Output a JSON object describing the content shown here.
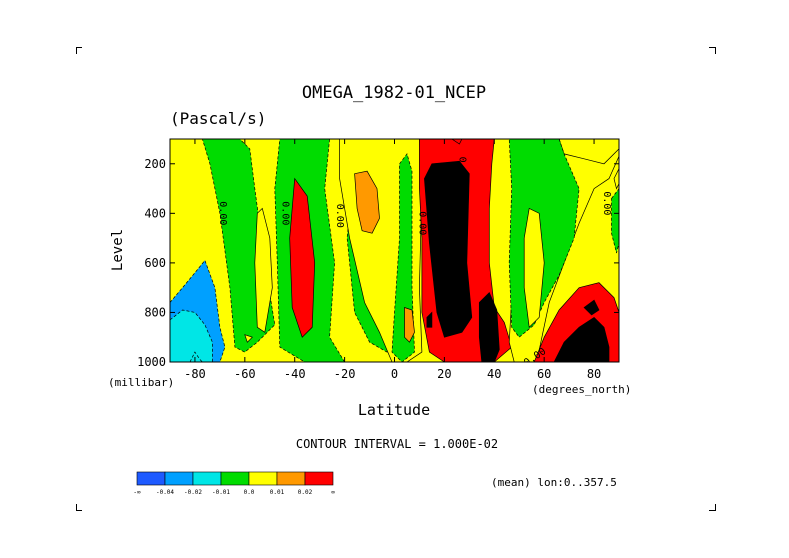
{
  "chart_data": {
    "type": "heatmap",
    "title": "OMEGA_1982-01_NCEP",
    "subtitle": "(Pascal/s)",
    "ylabel": "Level",
    "yunits": "(millibar)",
    "xlabel": "Latitude",
    "xunits": "(degrees_north)",
    "xlim": [
      -90,
      90
    ],
    "ylim": [
      1000,
      100
    ],
    "x_ticks": [
      -80,
      -60,
      -40,
      -20,
      0,
      20,
      40,
      60,
      80
    ],
    "y_ticks": [
      200,
      400,
      600,
      800,
      1000
    ],
    "contour_interval_text": "CONTOUR INTERVAL = 1.000E-02",
    "mean_note": "(mean) lon:0..357.5",
    "contour_labels": [
      "0.00",
      "0.00",
      "0.00",
      "0.00",
      "0.00",
      "0.00",
      "0.00"
    ],
    "levels": [
      {
        "label": "-∞",
        "color": "#1e5aff"
      },
      {
        "label": "-0.04",
        "color": "#00a0ff"
      },
      {
        "label": "-0.02",
        "color": "#00e6e6"
      },
      {
        "label": "-0.01",
        "color": "#00dc00"
      },
      {
        "label": "0.0",
        "color": "#ffff00"
      },
      {
        "label": "0.01",
        "color": "#ff9900"
      },
      {
        "label": "0.02",
        "color": "#ff0000"
      },
      {
        "label": "∞",
        "color": ""
      }
    ],
    "regions": [
      {
        "cat": 1,
        "poly": [
          [
            -90,
            760
          ],
          [
            -85,
            700
          ],
          [
            -80,
            640
          ],
          [
            -76,
            590
          ],
          [
            -72,
            700
          ],
          [
            -70,
            860
          ],
          [
            -68,
            940
          ],
          [
            -70,
            1000
          ],
          [
            -90,
            1000
          ]
        ]
      },
      {
        "cat": 2,
        "poly": [
          [
            -90,
            830
          ],
          [
            -85,
            790
          ],
          [
            -80,
            800
          ],
          [
            -76,
            850
          ],
          [
            -73,
            920
          ],
          [
            -73,
            1000
          ],
          [
            -90,
            1000
          ]
        ]
      },
      {
        "cat": 2,
        "poly": [
          [
            -82,
            1000
          ],
          [
            -80,
            960
          ],
          [
            -78,
            990
          ],
          [
            -77,
            1000
          ]
        ]
      },
      {
        "cat": 3,
        "poly": [
          [
            -77,
            100
          ],
          [
            -62,
            100
          ],
          [
            -58,
            140
          ],
          [
            -56,
            300
          ],
          [
            -52,
            600
          ],
          [
            -48,
            850
          ],
          [
            -55,
            920
          ],
          [
            -60,
            960
          ],
          [
            -64,
            940
          ],
          [
            -66,
            700
          ],
          [
            -70,
            400
          ],
          [
            -74,
            200
          ]
        ]
      },
      {
        "cat": 4,
        "poly": [
          [
            -53,
            380
          ],
          [
            -50,
            500
          ],
          [
            -49,
            700
          ],
          [
            -52,
            880
          ],
          [
            -55,
            860
          ],
          [
            -56,
            600
          ],
          [
            -55,
            400
          ]
        ]
      },
      {
        "cat": 4,
        "poly": [
          [
            -60,
            890
          ],
          [
            -57,
            900
          ],
          [
            -59,
            920
          ]
        ]
      },
      {
        "cat": 3,
        "poly": [
          [
            -46,
            100
          ],
          [
            -26,
            100
          ],
          [
            -28,
            300
          ],
          [
            -24,
            600
          ],
          [
            -26,
            900
          ],
          [
            -20,
            1000
          ],
          [
            -36,
            1000
          ],
          [
            -46,
            940
          ],
          [
            -47,
            600
          ],
          [
            -48,
            300
          ]
        ]
      },
      {
        "cat": 6,
        "poly": [
          [
            -40,
            260
          ],
          [
            -35,
            330
          ],
          [
            -32,
            600
          ],
          [
            -33,
            860
          ],
          [
            -37,
            900
          ],
          [
            -41,
            780
          ],
          [
            -42,
            500
          ]
        ]
      },
      {
        "cat": 3,
        "poly": [
          [
            -15,
            100
          ],
          [
            -10,
            100
          ],
          [
            -6,
            140
          ],
          [
            -3,
            400
          ],
          [
            -1,
            800
          ],
          [
            -3,
            960
          ],
          [
            -10,
            920
          ],
          [
            -16,
            800
          ],
          [
            -19,
            500
          ]
        ]
      },
      {
        "cat": 4,
        "poly": [
          [
            -22,
            100
          ],
          [
            10,
            100
          ],
          [
            11,
            300
          ],
          [
            10,
            700
          ],
          [
            11,
            960
          ],
          [
            5,
            1000
          ],
          [
            -1,
            1000
          ],
          [
            -6,
            880
          ],
          [
            -12,
            760
          ],
          [
            -18,
            500
          ],
          [
            -22,
            260
          ]
        ]
      },
      {
        "cat": 5,
        "poly": [
          [
            -16,
            240
          ],
          [
            -11,
            230
          ],
          [
            -7,
            300
          ],
          [
            -6,
            420
          ],
          [
            -9,
            480
          ],
          [
            -13,
            470
          ],
          [
            -15,
            380
          ]
        ]
      },
      {
        "cat": 3,
        "poly": [
          [
            2,
            200
          ],
          [
            5,
            160
          ],
          [
            7,
            230
          ],
          [
            7,
            700
          ],
          [
            8,
            960
          ],
          [
            3,
            1000
          ],
          [
            -1,
            960
          ],
          [
            0,
            800
          ],
          [
            2,
            500
          ]
        ]
      },
      {
        "cat": 5,
        "poly": [
          [
            4,
            780
          ],
          [
            7,
            790
          ],
          [
            8,
            880
          ],
          [
            6,
            920
          ],
          [
            4,
            900
          ]
        ]
      },
      {
        "cat": 6,
        "poly": [
          [
            10,
            100
          ],
          [
            40,
            100
          ],
          [
            39,
            200
          ],
          [
            38,
            380
          ],
          [
            38,
            600
          ],
          [
            40,
            780
          ],
          [
            44,
            840
          ],
          [
            47,
            940
          ],
          [
            40,
            1000
          ],
          [
            20,
            1000
          ],
          [
            14,
            960
          ],
          [
            11,
            800
          ],
          [
            11,
            500
          ],
          [
            10,
            300
          ]
        ]
      },
      {
        "cat": 6,
        "poly": [
          [
            23,
            100
          ],
          [
            27,
            100
          ],
          [
            26,
            120
          ]
        ]
      },
      {
        "cat": 7,
        "poly": [
          [
            12,
            260
          ],
          [
            15,
            200
          ],
          [
            26,
            190
          ],
          [
            30,
            240
          ],
          [
            29,
            600
          ],
          [
            31,
            820
          ],
          [
            27,
            880
          ],
          [
            20,
            900
          ],
          [
            17,
            800
          ],
          [
            14,
            520
          ]
        ]
      },
      {
        "cat": 7,
        "poly": [
          [
            34,
            760
          ],
          [
            38,
            720
          ],
          [
            41,
            790
          ],
          [
            42,
            950
          ],
          [
            40,
            1000
          ],
          [
            35,
            1000
          ],
          [
            34,
            900
          ]
        ]
      },
      {
        "cat": 7,
        "poly": [
          [
            13,
            820
          ],
          [
            15,
            800
          ],
          [
            15,
            860
          ],
          [
            13,
            860
          ]
        ]
      },
      {
        "cat": 4,
        "poly": [
          [
            58,
            100
          ],
          [
            90,
            100
          ],
          [
            90,
            170
          ],
          [
            86,
            260
          ],
          [
            80,
            300
          ],
          [
            74,
            440
          ],
          [
            68,
            600
          ],
          [
            62,
            760
          ],
          [
            57,
            1000
          ],
          [
            48,
            1000
          ],
          [
            46,
            920
          ],
          [
            49,
            400
          ],
          [
            53,
            200
          ]
        ]
      },
      {
        "cat": 4,
        "poly": [
          [
            66,
            100
          ],
          [
            90,
            100
          ],
          [
            90,
            140
          ],
          [
            84,
            200
          ],
          [
            76,
            180
          ],
          [
            68,
            160
          ]
        ]
      },
      {
        "cat": 3,
        "poly": [
          [
            46,
            100
          ],
          [
            66,
            100
          ],
          [
            68,
            160
          ],
          [
            74,
            300
          ],
          [
            72,
            500
          ],
          [
            66,
            650
          ],
          [
            60,
            760
          ],
          [
            56,
            850
          ],
          [
            50,
            900
          ],
          [
            47,
            860
          ],
          [
            46,
            600
          ],
          [
            47,
            300
          ]
        ]
      },
      {
        "cat": 4,
        "poly": [
          [
            54,
            380
          ],
          [
            58,
            400
          ],
          [
            60,
            600
          ],
          [
            58,
            820
          ],
          [
            54,
            860
          ],
          [
            52,
            700
          ],
          [
            52,
            500
          ]
        ]
      },
      {
        "cat": 3,
        "poly": [
          [
            87,
            340
          ],
          [
            90,
            300
          ],
          [
            90,
            520
          ],
          [
            89,
            560
          ],
          [
            87,
            480
          ]
        ]
      },
      {
        "cat": 4,
        "poly": [
          [
            88,
            260
          ],
          [
            90,
            220
          ],
          [
            90,
            280
          ],
          [
            89,
            300
          ]
        ]
      },
      {
        "cat": 6,
        "poly": [
          [
            56,
            1000
          ],
          [
            60,
            900
          ],
          [
            66,
            790
          ],
          [
            74,
            700
          ],
          [
            82,
            680
          ],
          [
            88,
            740
          ],
          [
            90,
            800
          ],
          [
            90,
            1000
          ]
        ]
      },
      {
        "cat": 7,
        "poly": [
          [
            64,
            1000
          ],
          [
            68,
            920
          ],
          [
            74,
            860
          ],
          [
            80,
            820
          ],
          [
            84,
            860
          ],
          [
            86,
            940
          ],
          [
            86,
            1000
          ]
        ]
      },
      {
        "cat": 7,
        "poly": [
          [
            76,
            780
          ],
          [
            80,
            750
          ],
          [
            82,
            790
          ],
          [
            79,
            810
          ]
        ]
      }
    ]
  }
}
